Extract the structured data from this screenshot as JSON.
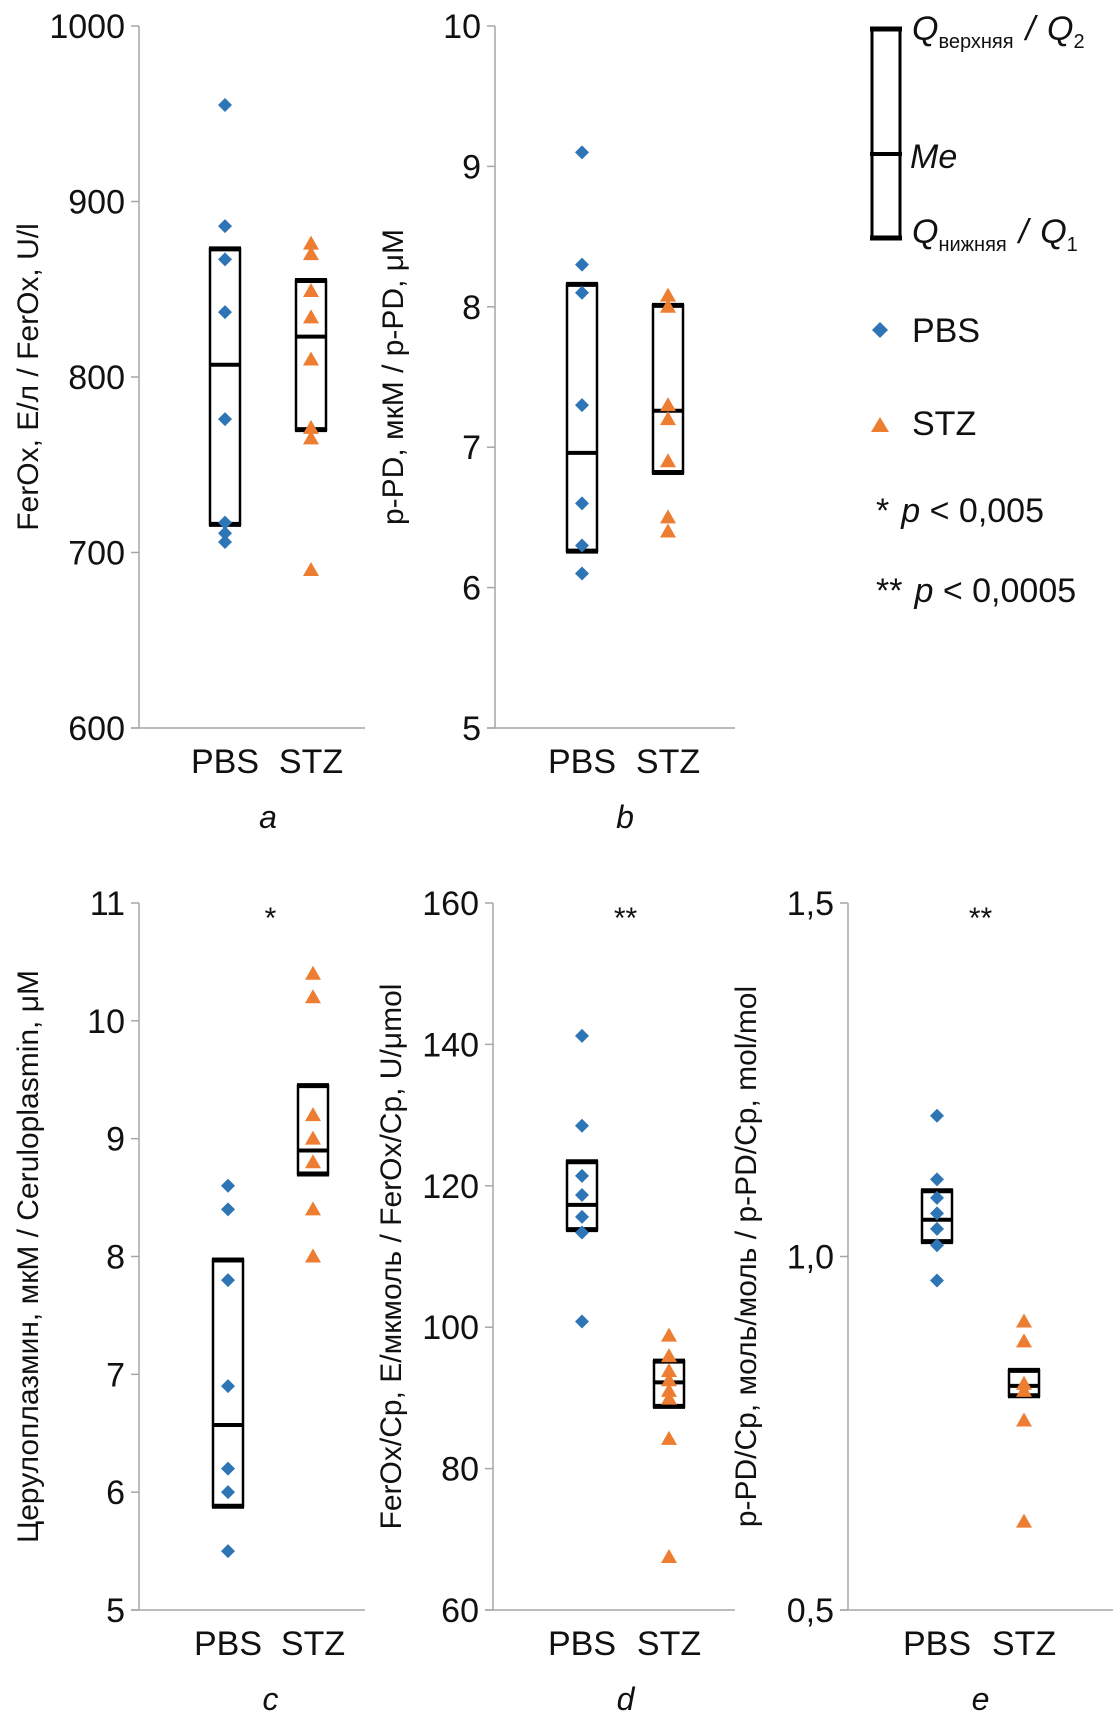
{
  "colors": {
    "pbs": "#2E75B6",
    "stz": "#ED7D31",
    "axis": "#A6A6A6",
    "box": "#000000"
  },
  "legend": {
    "upper_quartile_q": "Q",
    "upper_quartile_sub": "верхняя",
    "upper_quartile_sep": "/",
    "upper_quartile_alt": "Q",
    "upper_quartile_alt_sub": "2",
    "median": "Me",
    "lower_quartile_q": "Q",
    "lower_quartile_sub": "нижняя",
    "lower_quartile_sep": "/",
    "lower_quartile_alt": "Q",
    "lower_quartile_alt_sub": "1",
    "pbs": "PBS",
    "stz": "STZ",
    "sig1_stars": "*",
    "sig1_p": "p",
    "sig1_rest": " < 0,005",
    "sig2_stars": "**",
    "sig2_p": "p",
    "sig2_rest": " < 0,0005"
  },
  "chart_data": [
    {
      "id": "a",
      "type": "scatter",
      "panel_letter": "a",
      "ylabel": "FerOx, Е/л / FerOx, U/l",
      "ylim": [
        600,
        1000
      ],
      "yticks": [
        600,
        700,
        800,
        900,
        1000
      ],
      "ytick_labels": [
        "600",
        "700",
        "800",
        "900",
        "1000"
      ],
      "categories": [
        "PBS",
        "STZ"
      ],
      "significance": "",
      "series": [
        {
          "name": "PBS",
          "marker": "diamond",
          "values": [
            955,
            886,
            867,
            837,
            776,
            717,
            711,
            706
          ],
          "box": {
            "q1": 716,
            "median": 807,
            "q3": 873
          }
        },
        {
          "name": "STZ",
          "marker": "triangle",
          "values": [
            876,
            870,
            849,
            834,
            810,
            771,
            765,
            690
          ],
          "box": {
            "q1": 770,
            "median": 823,
            "q3": 855
          }
        }
      ]
    },
    {
      "id": "b",
      "type": "scatter",
      "panel_letter": "b",
      "ylabel": "p-PD, мкМ / p-PD, μM",
      "ylim": [
        5,
        10
      ],
      "yticks": [
        5,
        6,
        7,
        8,
        9,
        10
      ],
      "ytick_labels": [
        "5",
        "6",
        "7",
        "8",
        "9",
        "10"
      ],
      "categories": [
        "PBS",
        "STZ"
      ],
      "significance": "",
      "series": [
        {
          "name": "PBS",
          "marker": "diamond",
          "values": [
            9.1,
            8.3,
            8.1,
            7.3,
            6.6,
            6.3,
            6.1
          ],
          "box": {
            "q1": 6.26,
            "median": 6.96,
            "q3": 8.16
          }
        },
        {
          "name": "STZ",
          "marker": "triangle",
          "values": [
            8.08,
            8.0,
            7.3,
            7.2,
            6.9,
            6.5,
            6.4
          ],
          "box": {
            "q1": 6.82,
            "median": 7.26,
            "q3": 8.01
          }
        }
      ]
    },
    {
      "id": "c",
      "type": "scatter",
      "panel_letter": "c",
      "ylabel": "Церулоплазмин, мкМ / Ceruloplasmin, μM",
      "ylim": [
        5,
        11
      ],
      "yticks": [
        5,
        6,
        7,
        8,
        9,
        10,
        11
      ],
      "ytick_labels": [
        "5",
        "6",
        "7",
        "8",
        "9",
        "10",
        "11"
      ],
      "categories": [
        "PBS",
        "STZ"
      ],
      "significance": "*",
      "series": [
        {
          "name": "PBS",
          "marker": "diamond",
          "values": [
            8.6,
            8.4,
            7.8,
            6.9,
            6.2,
            6.0,
            5.5
          ],
          "box": {
            "q1": 5.88,
            "median": 6.57,
            "q3": 7.97
          }
        },
        {
          "name": "STZ",
          "marker": "triangle",
          "values": [
            10.4,
            10.2,
            9.2,
            9.0,
            8.8,
            8.4,
            8.0
          ],
          "box": {
            "q1": 8.7,
            "median": 8.9,
            "q3": 9.45
          }
        }
      ]
    },
    {
      "id": "d",
      "type": "scatter",
      "panel_letter": "d",
      "ylabel": "FerOx/Cp, Е/мкмоль / FerOx/Cp, U/μmol",
      "ylim": [
        60,
        160
      ],
      "yticks": [
        60,
        80,
        100,
        120,
        140,
        160
      ],
      "ytick_labels": [
        "60",
        "80",
        "100",
        "120",
        "140",
        "160"
      ],
      "categories": [
        "PBS",
        "STZ"
      ],
      "significance": "**",
      "series": [
        {
          "name": "PBS",
          "marker": "diamond",
          "values": [
            141.2,
            128.5,
            121.4,
            118.7,
            115.6,
            113.4,
            100.8
          ],
          "box": {
            "q1": 113.8,
            "median": 117.3,
            "q3": 123.4
          }
        },
        {
          "name": "STZ",
          "marker": "triangle",
          "values": [
            98.8,
            95.9,
            93.8,
            92.5,
            91.0,
            89.9,
            84.2,
            67.5
          ],
          "box": {
            "q1": 88.8,
            "median": 92.2,
            "q3": 95.2
          }
        }
      ]
    },
    {
      "id": "e",
      "type": "scatter",
      "panel_letter": "e",
      "ylabel": "p-PD/Cp, моль/моль / p-PD/Cp, mol/mol",
      "ylim": [
        0.5,
        1.5
      ],
      "yticks": [
        0.5,
        1.0,
        1.5
      ],
      "ytick_labels": [
        "0,5",
        "1,0",
        "1,5"
      ],
      "categories": [
        "PBS",
        "STZ"
      ],
      "significance": "**",
      "series": [
        {
          "name": "PBS",
          "marker": "diamond",
          "values": [
            1.199,
            1.109,
            1.083,
            1.061,
            1.039,
            1.016,
            0.966
          ],
          "box": {
            "q1": 1.021,
            "median": 1.052,
            "q3": 1.093
          }
        },
        {
          "name": "STZ",
          "marker": "triangle",
          "values": [
            0.908,
            0.88,
            0.82,
            0.81,
            0.768,
            0.625
          ],
          "box": {
            "q1": 0.803,
            "median": 0.817,
            "q3": 0.839
          }
        }
      ]
    }
  ]
}
